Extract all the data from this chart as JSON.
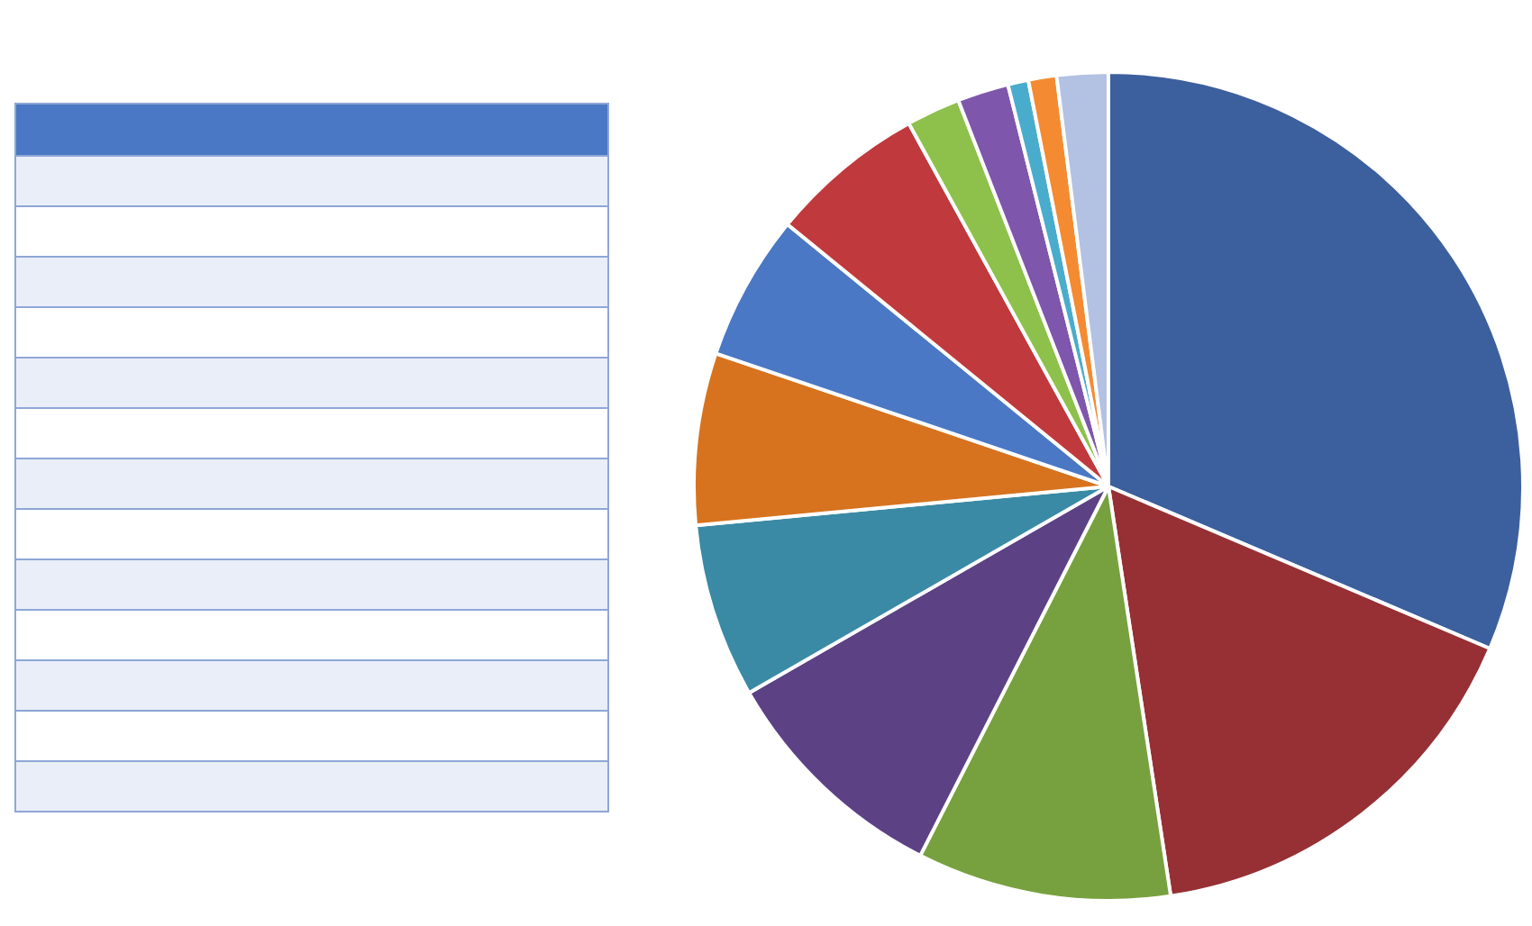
{
  "chart_data": {
    "type": "pie",
    "categories": [
      null,
      null,
      null,
      null,
      null,
      null,
      null,
      null,
      null,
      null,
      null,
      null,
      null
    ],
    "values": [
      31.4,
      16.2,
      9.9,
      9.2,
      6.8,
      6.7,
      5.7,
      6.1,
      2.1,
      2.0,
      0.8,
      1.1,
      2.0
    ],
    "colors": [
      "#3c5f9e",
      "#963034",
      "#77a13e",
      "#5c4285",
      "#3a8aa5",
      "#d7731f",
      "#4a78c4",
      "#c0393d",
      "#8dc14b",
      "#7e56ab",
      "#4aaccc",
      "#f48b32",
      "#b3c1e3"
    ]
  }
}
